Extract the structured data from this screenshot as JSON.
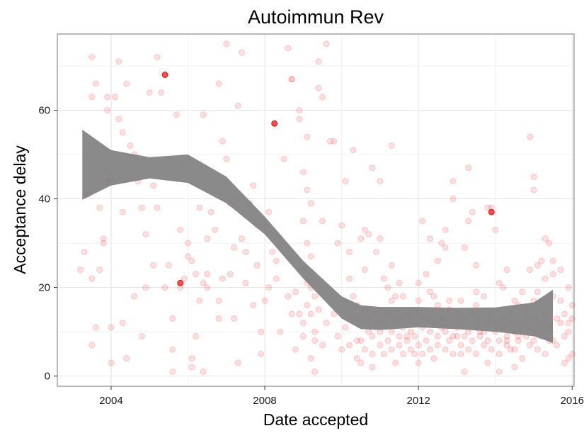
{
  "chart_data": {
    "type": "scatter",
    "title": "Autoimmun Rev",
    "xlabel": "Date accepted",
    "ylabel": "Acceptance delay",
    "xlim": [
      2002.6,
      2016.05
    ],
    "ylim": [
      -2.3,
      77.2
    ],
    "x_ticks": [
      2004,
      2008,
      2012,
      2016
    ],
    "x_tick_labels": [
      "2004",
      "2008",
      "2012",
      "2016"
    ],
    "y_ticks": [
      0,
      20,
      40,
      60
    ],
    "y_tick_labels": [
      "0",
      "20",
      "40",
      "60"
    ],
    "grid": true,
    "point_color": "#ff0000",
    "point_opacity": 0.12,
    "ribbon_color": "#808080",
    "smooth": {
      "x": [
        2003.25,
        2004.0,
        2005.0,
        2006.0,
        2007.0,
        2008.0,
        2009.0,
        2010.0,
        2010.5,
        2011.0,
        2012.0,
        2013.0,
        2014.0,
        2015.0,
        2015.5
      ],
      "y": [
        47.7,
        47.0,
        47.0,
        46.8,
        42.0,
        34.0,
        24.0,
        15.5,
        13.3,
        13.0,
        13.3,
        13.0,
        12.7,
        13.0,
        13.0
      ],
      "lower": [
        39.8,
        43.0,
        44.6,
        43.6,
        39.0,
        32.0,
        22.0,
        13.0,
        10.6,
        10.4,
        11.0,
        10.6,
        10.0,
        9.0,
        7.5
      ],
      "upper": [
        55.6,
        51.0,
        49.4,
        50.0,
        45.0,
        36.0,
        26.0,
        18.0,
        16.0,
        15.6,
        15.6,
        15.4,
        15.5,
        16.6,
        19.5
      ]
    },
    "points": [
      [
        2003.2,
        24
      ],
      [
        2003.3,
        28
      ],
      [
        2003.4,
        41
      ],
      [
        2003.5,
        72
      ],
      [
        2003.5,
        63
      ],
      [
        2003.6,
        66
      ],
      [
        2003.5,
        22
      ],
      [
        2003.5,
        7
      ],
      [
        2003.6,
        11
      ],
      [
        2003.7,
        24
      ],
      [
        2003.8,
        30
      ],
      [
        2003.8,
        31
      ],
      [
        2003.9,
        63
      ],
      [
        2003.9,
        60
      ],
      [
        2003.9,
        46
      ],
      [
        2004.0,
        44
      ],
      [
        2004.0,
        11
      ],
      [
        2004.0,
        3
      ],
      [
        2004.1,
        63
      ],
      [
        2004.2,
        71
      ],
      [
        2004.2,
        58
      ],
      [
        2004.3,
        12
      ],
      [
        2004.3,
        55
      ],
      [
        2004.4,
        4
      ],
      [
        2004.4,
        66
      ],
      [
        2004.5,
        52
      ],
      [
        2004.6,
        50
      ],
      [
        2004.7,
        44
      ],
      [
        2004.8,
        9
      ],
      [
        2004.9,
        32
      ],
      [
        2004.9,
        20
      ],
      [
        2005.0,
        64
      ],
      [
        2005.1,
        43
      ],
      [
        2005.2,
        72
      ],
      [
        2005.2,
        38
      ],
      [
        2005.3,
        64
      ],
      [
        2005.4,
        20
      ],
      [
        2005.5,
        47
      ],
      [
        2005.5,
        25
      ],
      [
        2005.6,
        6
      ],
      [
        2005.6,
        1
      ],
      [
        2005.7,
        59
      ],
      [
        2005.8,
        33
      ],
      [
        2005.9,
        48
      ],
      [
        2006.0,
        30
      ],
      [
        2006.0,
        27
      ],
      [
        2006.1,
        2
      ],
      [
        2006.1,
        4
      ],
      [
        2006.2,
        23
      ],
      [
        2006.2,
        9
      ],
      [
        2006.3,
        38
      ],
      [
        2006.3,
        17
      ],
      [
        2006.4,
        1
      ],
      [
        2006.4,
        59
      ],
      [
        2006.5,
        31
      ],
      [
        2006.5,
        20
      ],
      [
        2006.6,
        37
      ],
      [
        2006.7,
        33
      ],
      [
        2006.8,
        66
      ],
      [
        2006.8,
        17
      ],
      [
        2006.9,
        53
      ],
      [
        2006.9,
        22
      ],
      [
        2007.0,
        75
      ],
      [
        2007.0,
        49
      ],
      [
        2007.1,
        23
      ],
      [
        2007.1,
        39
      ],
      [
        2007.2,
        29
      ],
      [
        2007.3,
        61
      ],
      [
        2007.3,
        3
      ],
      [
        2007.4,
        73
      ],
      [
        2007.5,
        21
      ],
      [
        2007.5,
        28
      ],
      [
        2007.7,
        43
      ],
      [
        2007.8,
        25
      ],
      [
        2007.9,
        10
      ],
      [
        2007.9,
        5
      ],
      [
        2008.0,
        17
      ],
      [
        2008.1,
        37
      ],
      [
        2008.2,
        28
      ],
      [
        2008.3,
        22
      ],
      [
        2008.4,
        10
      ],
      [
        2008.5,
        49
      ],
      [
        2008.6,
        74
      ],
      [
        2008.7,
        67
      ],
      [
        2008.7,
        67
      ],
      [
        2008.8,
        19
      ],
      [
        2008.9,
        60
      ],
      [
        2008.9,
        58
      ],
      [
        2009.0,
        46
      ],
      [
        2009.1,
        54
      ],
      [
        2009.1,
        42
      ],
      [
        2009.2,
        39
      ],
      [
        2009.2,
        20
      ],
      [
        2009.3,
        8
      ],
      [
        2009.3,
        1
      ],
      [
        2009.4,
        71
      ],
      [
        2009.4,
        65
      ],
      [
        2009.5,
        63
      ],
      [
        2009.5,
        35
      ],
      [
        2009.6,
        75
      ],
      [
        2009.7,
        53
      ],
      [
        2009.8,
        53
      ],
      [
        2009.9,
        30
      ],
      [
        2010.0,
        34
      ],
      [
        2010.1,
        44
      ],
      [
        2010.2,
        22
      ],
      [
        2010.3,
        51
      ],
      [
        2010.3,
        18
      ],
      [
        2010.4,
        16
      ],
      [
        2010.5,
        31
      ],
      [
        2010.6,
        33
      ],
      [
        2010.7,
        32
      ],
      [
        2010.8,
        47
      ],
      [
        2010.8,
        2
      ],
      [
        2010.9,
        28
      ],
      [
        2011.0,
        44
      ],
      [
        2011.0,
        31
      ],
      [
        2011.1,
        22
      ],
      [
        2011.2,
        20
      ],
      [
        2011.3,
        25
      ],
      [
        2011.3,
        52
      ],
      [
        2011.4,
        18
      ],
      [
        2011.5,
        21
      ],
      [
        2011.5,
        13
      ],
      [
        2011.6,
        18
      ],
      [
        2011.7,
        9
      ],
      [
        2011.8,
        13
      ],
      [
        2011.9,
        5
      ],
      [
        2012.0,
        3
      ],
      [
        2012.0,
        21
      ],
      [
        2012.1,
        35
      ],
      [
        2012.2,
        23
      ],
      [
        2012.3,
        31
      ],
      [
        2012.3,
        19
      ],
      [
        2012.4,
        18
      ],
      [
        2012.5,
        26
      ],
      [
        2012.5,
        16
      ],
      [
        2012.6,
        30
      ],
      [
        2012.7,
        33
      ],
      [
        2012.7,
        29
      ],
      [
        2012.8,
        15
      ],
      [
        2012.9,
        44
      ],
      [
        2012.9,
        40
      ],
      [
        2013.0,
        9
      ],
      [
        2013.1,
        17
      ],
      [
        2013.1,
        5
      ],
      [
        2013.2,
        1
      ],
      [
        2013.2,
        29
      ],
      [
        2013.3,
        35
      ],
      [
        2013.3,
        47
      ],
      [
        2013.4,
        37
      ],
      [
        2013.5,
        25
      ],
      [
        2013.5,
        16
      ],
      [
        2013.6,
        10
      ],
      [
        2013.7,
        18
      ],
      [
        2013.8,
        3
      ],
      [
        2013.8,
        38
      ],
      [
        2013.9,
        38
      ],
      [
        2014.0,
        33
      ],
      [
        2014.1,
        21
      ],
      [
        2014.1,
        1
      ],
      [
        2014.2,
        20
      ],
      [
        2014.3,
        8
      ],
      [
        2014.3,
        24
      ],
      [
        2014.4,
        6
      ],
      [
        2014.5,
        2
      ],
      [
        2014.6,
        16
      ],
      [
        2014.6,
        9
      ],
      [
        2014.7,
        19
      ],
      [
        2014.8,
        13
      ],
      [
        2014.9,
        24
      ],
      [
        2014.9,
        54
      ],
      [
        2015.0,
        45
      ],
      [
        2015.0,
        42
      ],
      [
        2015.1,
        25
      ],
      [
        2015.1,
        19
      ],
      [
        2015.2,
        26
      ],
      [
        2015.3,
        31
      ],
      [
        2015.3,
        22
      ],
      [
        2015.4,
        11
      ],
      [
        2015.4,
        30
      ],
      [
        2015.5,
        23
      ],
      [
        2015.5,
        26
      ],
      [
        2015.5,
        18
      ],
      [
        2015.5,
        8
      ],
      [
        2015.6,
        7
      ],
      [
        2015.6,
        13
      ],
      [
        2015.7,
        12
      ],
      [
        2015.7,
        24
      ],
      [
        2015.7,
        17
      ],
      [
        2015.8,
        14
      ],
      [
        2015.8,
        9
      ],
      [
        2015.8,
        3
      ],
      [
        2015.9,
        20
      ],
      [
        2015.9,
        12
      ],
      [
        2015.9,
        4
      ],
      [
        2015.9,
        10
      ],
      [
        2016.0,
        5
      ],
      [
        2016.0,
        16
      ],
      [
        2016.0,
        13
      ],
      [
        2009.0,
        12
      ],
      [
        2009.1,
        16
      ],
      [
        2009.0,
        24
      ],
      [
        2009.1,
        30
      ],
      [
        2009.0,
        35
      ],
      [
        2009.2,
        27
      ],
      [
        2009.1,
        21
      ],
      [
        2009.2,
        14
      ],
      [
        2009.3,
        18
      ],
      [
        2009.0,
        9
      ],
      [
        2008.9,
        14
      ],
      [
        2008.8,
        6
      ],
      [
        2009.2,
        4
      ],
      [
        2009.3,
        10
      ],
      [
        2009.4,
        15
      ],
      [
        2009.5,
        7
      ],
      [
        2009.6,
        12
      ],
      [
        2009.7,
        18
      ],
      [
        2009.8,
        14
      ],
      [
        2009.9,
        9
      ],
      [
        2010.0,
        6
      ],
      [
        2010.1,
        11
      ],
      [
        2010.2,
        7
      ],
      [
        2010.3,
        13
      ],
      [
        2010.4,
        8
      ],
      [
        2010.4,
        4
      ],
      [
        2010.5,
        12
      ],
      [
        2010.5,
        8
      ],
      [
        2010.5,
        3
      ],
      [
        2010.6,
        15
      ],
      [
        2010.6,
        6
      ],
      [
        2010.7,
        10
      ],
      [
        2010.7,
        13
      ],
      [
        2010.8,
        5
      ],
      [
        2010.8,
        9
      ],
      [
        2010.9,
        12
      ],
      [
        2010.9,
        14
      ],
      [
        2011.0,
        7
      ],
      [
        2011.0,
        10
      ],
      [
        2011.1,
        5
      ],
      [
        2011.1,
        12
      ],
      [
        2011.2,
        8
      ],
      [
        2011.2,
        14
      ],
      [
        2011.3,
        6
      ],
      [
        2011.3,
        10
      ],
      [
        2011.4,
        3
      ],
      [
        2011.4,
        12
      ],
      [
        2011.5,
        7
      ],
      [
        2011.5,
        9
      ],
      [
        2011.6,
        11
      ],
      [
        2011.6,
        5
      ],
      [
        2011.7,
        8
      ],
      [
        2011.7,
        14
      ],
      [
        2011.8,
        10
      ],
      [
        2011.8,
        6
      ],
      [
        2011.9,
        12
      ],
      [
        2011.9,
        9
      ],
      [
        2012.0,
        7
      ],
      [
        2012.0,
        14
      ],
      [
        2012.1,
        5
      ],
      [
        2012.1,
        11
      ],
      [
        2012.2,
        8
      ],
      [
        2012.2,
        13
      ],
      [
        2012.3,
        6
      ],
      [
        2012.3,
        10
      ],
      [
        2012.4,
        4
      ],
      [
        2012.4,
        12
      ],
      [
        2012.5,
        9
      ],
      [
        2012.5,
        7
      ],
      [
        2012.6,
        11
      ],
      [
        2012.6,
        13
      ],
      [
        2012.7,
        6
      ],
      [
        2012.7,
        10
      ],
      [
        2012.8,
        8
      ],
      [
        2012.8,
        12
      ],
      [
        2012.9,
        5
      ],
      [
        2012.9,
        9
      ],
      [
        2013.0,
        11
      ],
      [
        2013.0,
        14
      ],
      [
        2013.1,
        7
      ],
      [
        2013.1,
        12
      ],
      [
        2013.2,
        9
      ],
      [
        2013.2,
        13
      ],
      [
        2013.3,
        6
      ],
      [
        2013.3,
        10
      ],
      [
        2013.4,
        8
      ],
      [
        2013.4,
        14
      ],
      [
        2013.5,
        11
      ],
      [
        2013.5,
        5
      ],
      [
        2013.6,
        9
      ],
      [
        2013.6,
        13
      ],
      [
        2013.7,
        7
      ],
      [
        2013.7,
        10
      ],
      [
        2013.8,
        12
      ],
      [
        2013.8,
        8
      ],
      [
        2013.9,
        6
      ],
      [
        2013.9,
        14
      ],
      [
        2014.0,
        10
      ],
      [
        2014.0,
        12
      ],
      [
        2014.1,
        8
      ],
      [
        2014.1,
        5
      ],
      [
        2014.2,
        11
      ],
      [
        2014.2,
        13
      ],
      [
        2014.3,
        9
      ],
      [
        2014.3,
        7
      ],
      [
        2014.4,
        12
      ],
      [
        2014.4,
        14
      ],
      [
        2014.5,
        10
      ],
      [
        2014.5,
        6
      ],
      [
        2014.6,
        12
      ],
      [
        2014.6,
        8
      ],
      [
        2014.7,
        11
      ],
      [
        2014.7,
        4
      ],
      [
        2014.8,
        9
      ],
      [
        2014.8,
        15
      ],
      [
        2014.9,
        7
      ],
      [
        2014.9,
        11
      ],
      [
        2015.0,
        13
      ],
      [
        2015.0,
        8
      ],
      [
        2015.1,
        10
      ],
      [
        2015.1,
        6
      ],
      [
        2015.2,
        12
      ],
      [
        2015.2,
        9
      ],
      [
        2015.3,
        14
      ],
      [
        2015.3,
        5
      ],
      [
        2015.4,
        8
      ],
      [
        2015.4,
        11
      ],
      [
        2003.8,
        47
      ],
      [
        2003.9,
        44
      ],
      [
        2005.9,
        22
      ],
      [
        2006.4,
        21
      ],
      [
        2007.6,
        39
      ],
      [
        2007.8,
        34
      ],
      [
        2008.1,
        32
      ],
      [
        2008.3,
        26
      ],
      [
        2008.4,
        30
      ],
      [
        2008.6,
        18
      ],
      [
        2008.7,
        14
      ],
      [
        2010.2,
        28
      ],
      [
        2010.6,
        24
      ],
      [
        2011.3,
        17
      ],
      [
        2012.0,
        17
      ],
      [
        2012.8,
        17
      ],
      [
        2013.5,
        19
      ],
      [
        2014.5,
        17
      ],
      [
        2015.0,
        17
      ],
      [
        2005.6,
        13
      ],
      [
        2006.8,
        13
      ],
      [
        2007.2,
        13
      ],
      [
        2004.6,
        18
      ],
      [
        2005.1,
        25
      ],
      [
        2006.1,
        26
      ],
      [
        2007.4,
        31
      ],
      [
        2004.3,
        37
      ],
      [
        2003.7,
        38
      ],
      [
        2004.8,
        38
      ],
      [
        2005.8,
        20
      ],
      [
        2006.5,
        23
      ],
      [
        2008.1,
        20
      ],
      [
        2007.7,
        16
      ]
    ],
    "highlighted_points": [
      [
        2005.4,
        68
      ],
      [
        2008.25,
        57
      ],
      [
        2005.8,
        21
      ],
      [
        2013.9,
        37
      ]
    ]
  }
}
